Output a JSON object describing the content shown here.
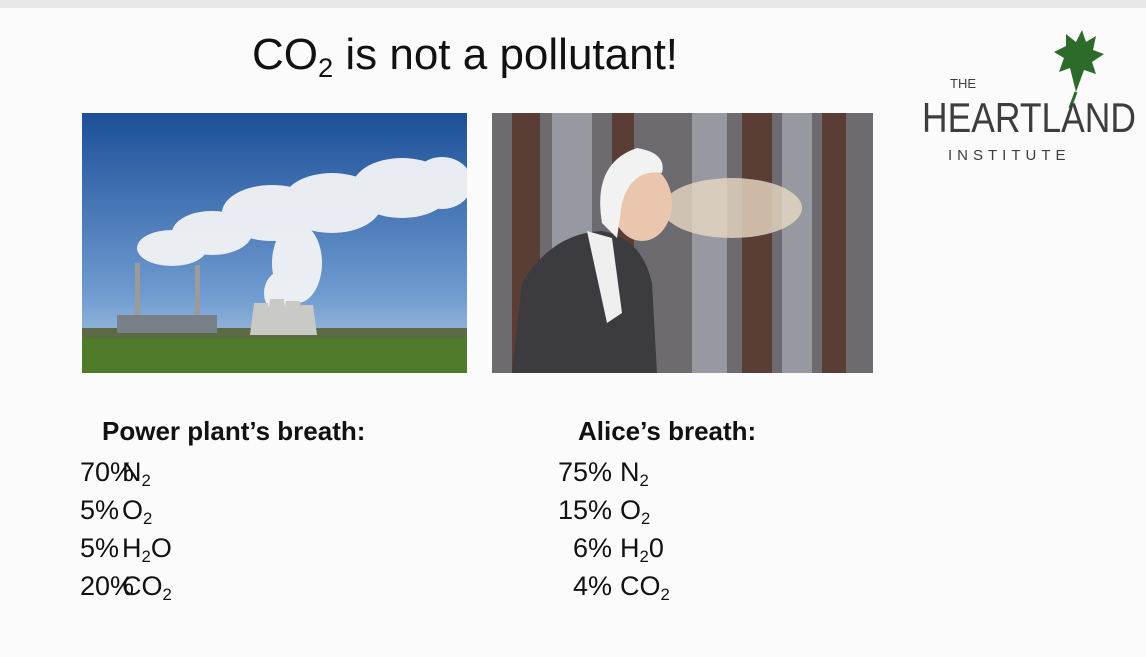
{
  "slide": {
    "title": [
      {
        "text": "CO"
      },
      {
        "sub": "2"
      },
      {
        "text": " is not a pollutant!"
      }
    ],
    "logo": {
      "top": "THE",
      "main": "HEARTLAND",
      "bottom": "INSTITUTE"
    },
    "columns": [
      {
        "heading": "Power plant’s breath:",
        "rows": [
          {
            "percent": "70%",
            "formula": [
              {
                "text": "N"
              },
              {
                "sub": "2"
              }
            ]
          },
          {
            "percent": "5%",
            "formula": [
              {
                "text": "O"
              },
              {
                "sub": "2"
              }
            ]
          },
          {
            "percent": "5%",
            "formula": [
              {
                "text": "H"
              },
              {
                "sub": "2"
              },
              {
                "text": "O"
              }
            ]
          },
          {
            "percent": "20%",
            "formula": [
              {
                "text": "CO"
              },
              {
                "sub": "2"
              }
            ]
          }
        ]
      },
      {
        "heading": "Alice’s breath:",
        "rows": [
          {
            "percent": "75%",
            "formula": [
              {
                "text": "N"
              },
              {
                "sub": "2"
              }
            ]
          },
          {
            "percent": "15%",
            "formula": [
              {
                "text": "O"
              },
              {
                "sub": "2"
              }
            ]
          },
          {
            "percent": "6%",
            "formula": [
              {
                "text": "H"
              },
              {
                "sub": "2"
              },
              {
                "text": "0"
              }
            ]
          },
          {
            "percent": "4%",
            "formula": [
              {
                "text": "CO"
              },
              {
                "sub": "2"
              }
            ]
          }
        ]
      }
    ]
  }
}
